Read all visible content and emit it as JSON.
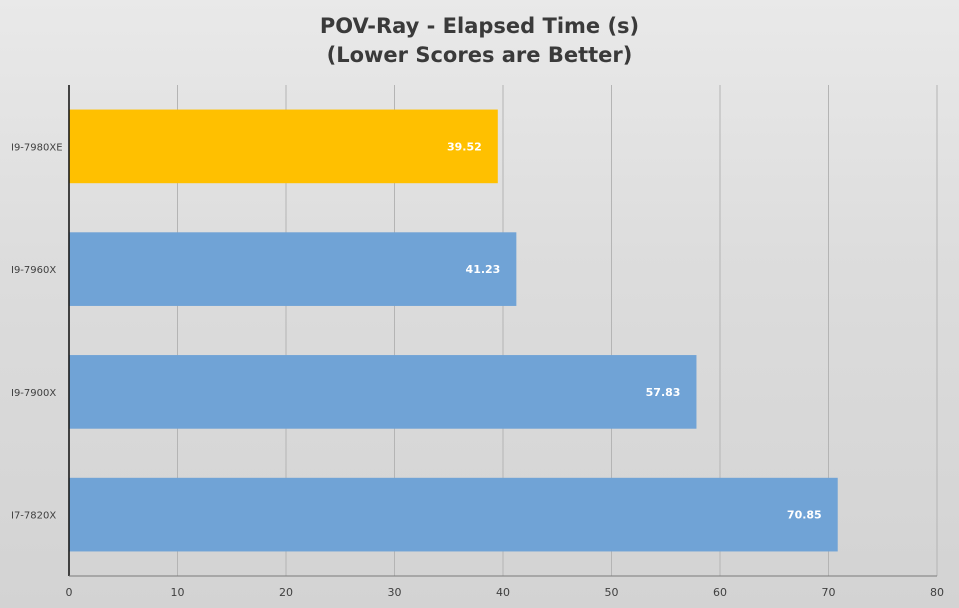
{
  "chart_data": {
    "type": "bar",
    "orientation": "horizontal",
    "title": "POV-Ray - Elapsed Time (s)",
    "subtitle": "(Lower Scores are Better)",
    "categories": [
      "I9-7980XE",
      "I9-7960X",
      "I9-7900X",
      "I7-7820X"
    ],
    "values": [
      39.52,
      41.23,
      57.83,
      70.85
    ],
    "data_labels": [
      "39.52",
      "41.23",
      "57.83",
      "70.85"
    ],
    "bar_colors": [
      "#ffc000",
      "#70a3d6",
      "#70a3d6",
      "#70a3d6"
    ],
    "xlim": [
      0,
      80
    ],
    "x_ticks": [
      0,
      10,
      20,
      30,
      40,
      50,
      60,
      70,
      80
    ],
    "xlabel": "",
    "ylabel": "",
    "grid": "vertical",
    "legend": "none"
  }
}
